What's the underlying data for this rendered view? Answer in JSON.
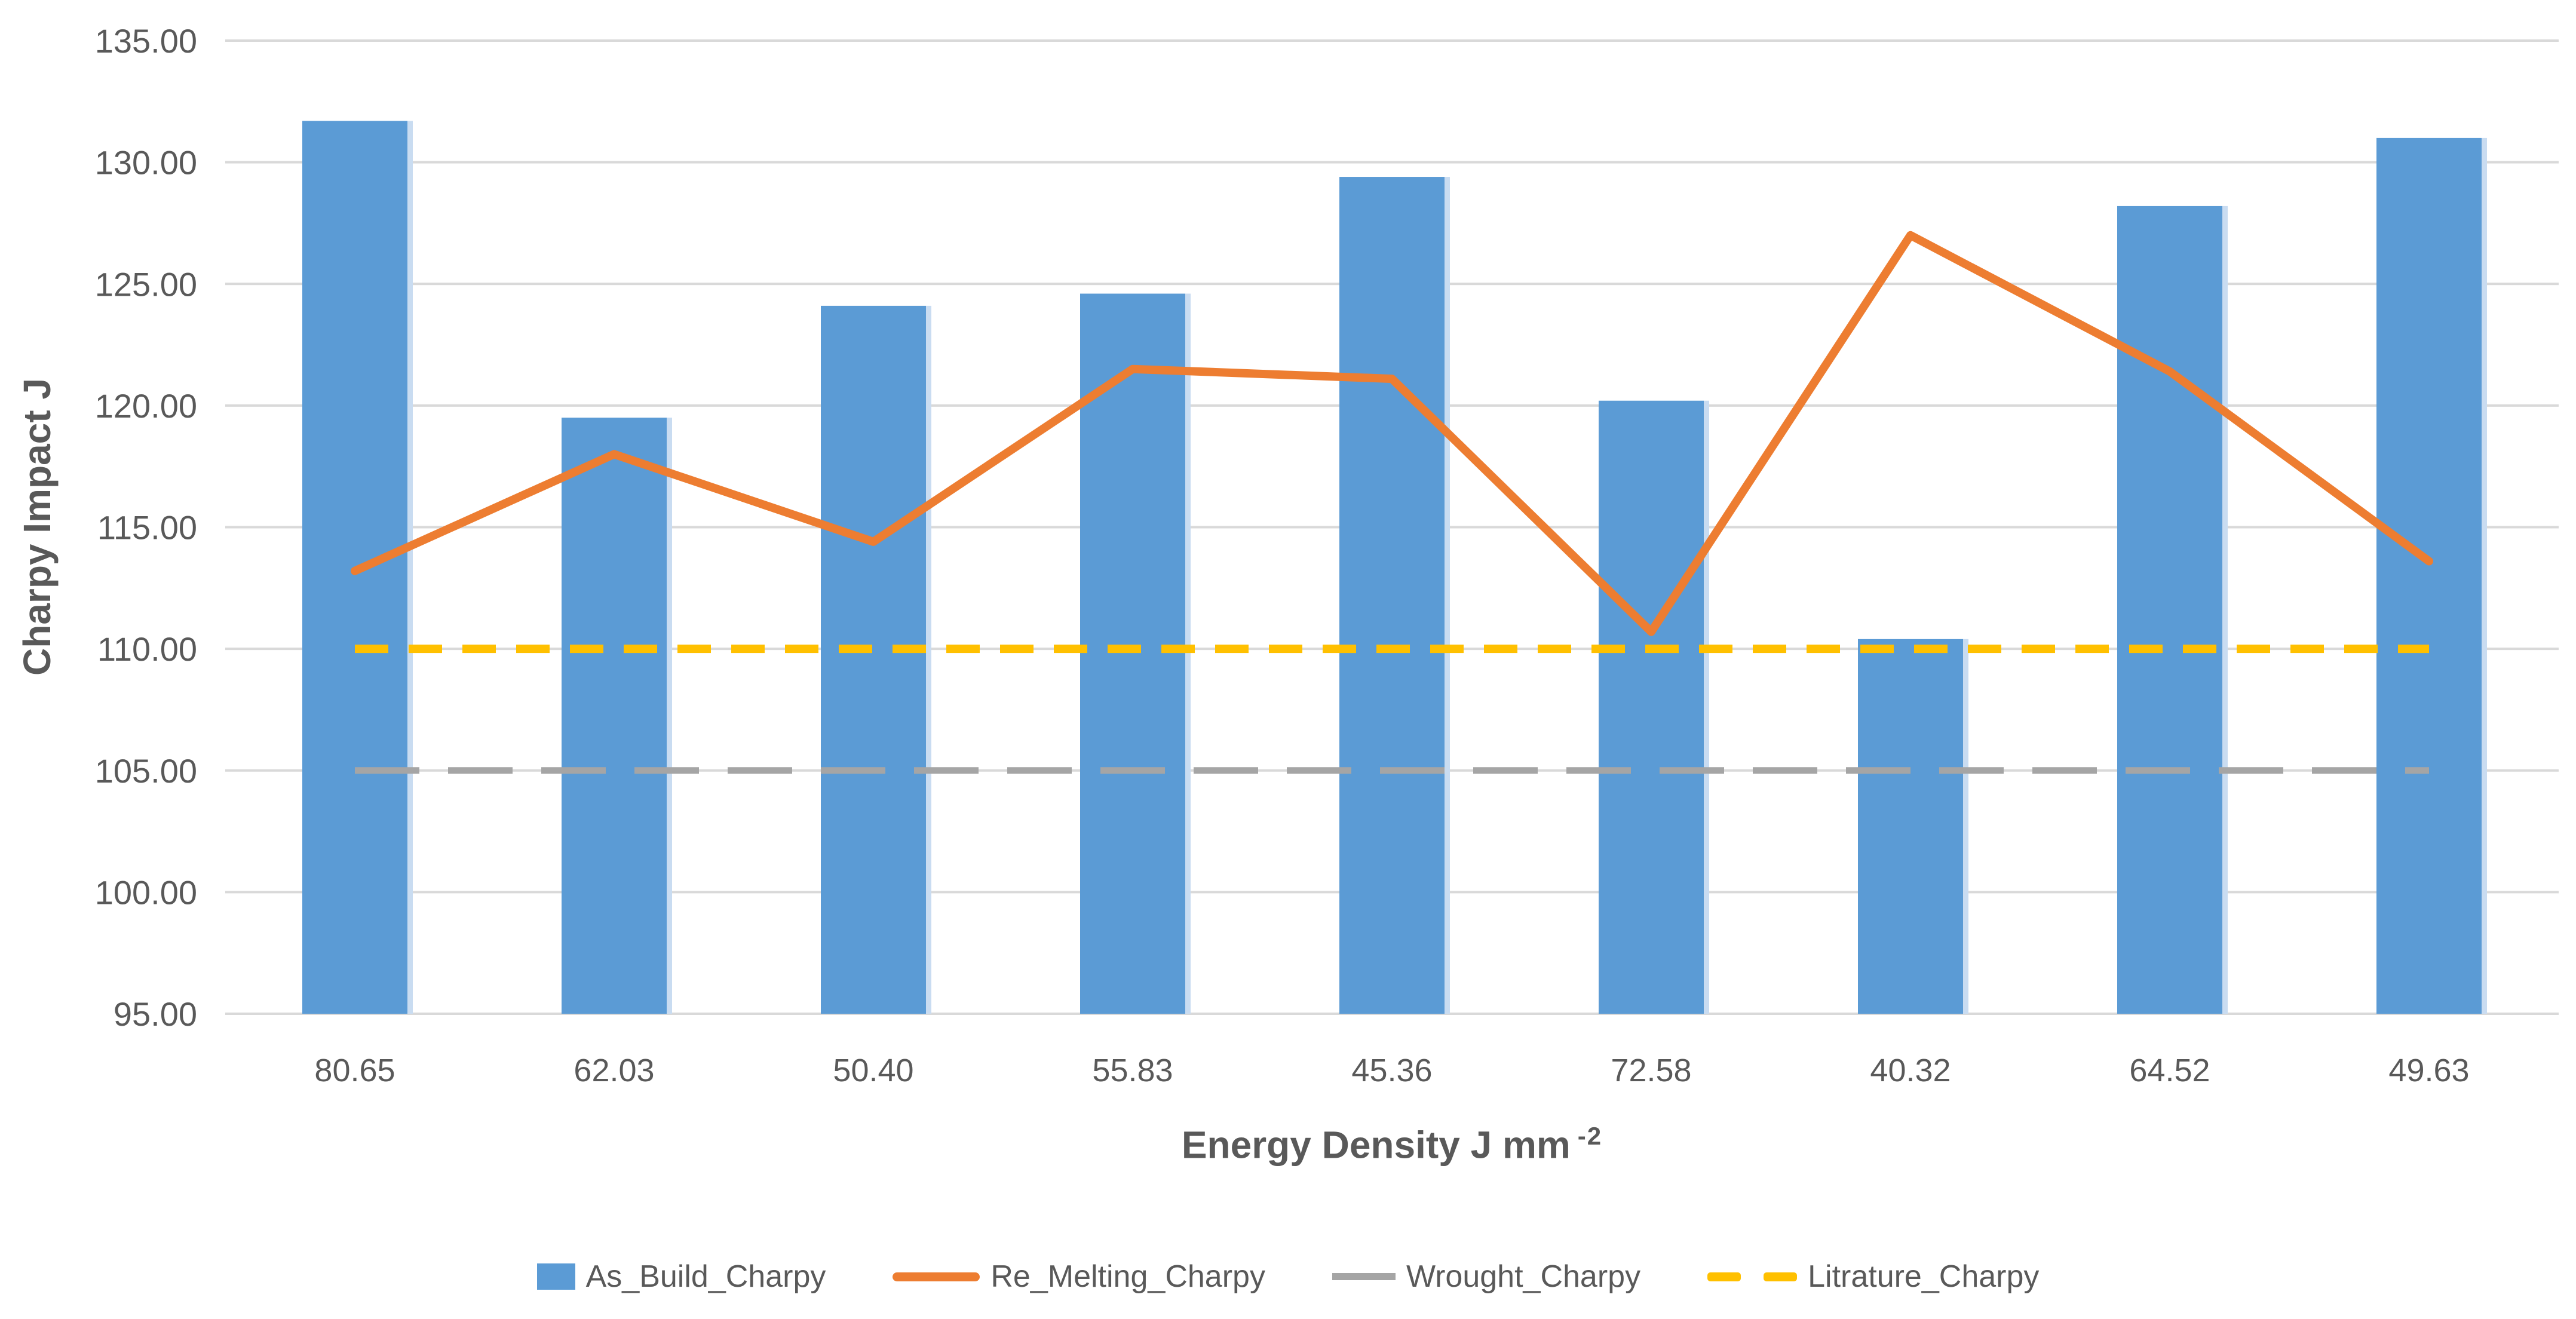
{
  "chart_data": {
    "type": "bar",
    "subtype": "combo-bar-line",
    "title": "",
    "categories": [
      "80.65",
      "62.03",
      "50.40",
      "55.83",
      "45.36",
      "72.58",
      "40.32",
      "64.52",
      "49.63"
    ],
    "series": [
      {
        "name": "As_Build_Charpy",
        "type": "bar",
        "color": "#5B9BD5",
        "values": [
          131.7,
          119.5,
          124.1,
          124.6,
          129.4,
          120.2,
          110.4,
          128.2,
          131.0
        ]
      },
      {
        "name": "Re_Melting_Charpy",
        "type": "line",
        "color": "#ED7D31",
        "values": [
          113.2,
          118.0,
          114.4,
          121.5,
          121.1,
          110.7,
          127.0,
          121.4,
          113.6
        ]
      },
      {
        "name": "Wrought_Charpy",
        "type": "dashed-line",
        "color": "#A5A5A5",
        "dash": "long",
        "values": [
          105,
          105,
          105,
          105,
          105,
          105,
          105,
          105,
          105
        ]
      },
      {
        "name": "Litrature_Charpy",
        "type": "dashed-line",
        "color": "#FFC000",
        "dash": "short",
        "values": [
          110,
          110,
          110,
          110,
          110,
          110,
          110,
          110,
          110
        ]
      }
    ],
    "xlabel": "Energy Density J mm",
    "xlabel_sup": "-2",
    "ylabel": "Charpy Impact J",
    "ylim": [
      95,
      135
    ],
    "y_tick_step": 5,
    "y_ticks": [
      {
        "value": 135,
        "label": "135.00"
      },
      {
        "value": 130,
        "label": "130.00"
      },
      {
        "value": 125,
        "label": "125.00"
      },
      {
        "value": 120,
        "label": "120.00"
      },
      {
        "value": 115,
        "label": "115.00"
      },
      {
        "value": 110,
        "label": "110.00"
      },
      {
        "value": 105,
        "label": "105.00"
      },
      {
        "value": 100,
        "label": "100.00"
      },
      {
        "value": 95,
        "label": "95.00"
      }
    ],
    "grid": "horizontal",
    "gridline_color": "#D9D9D9",
    "text_color": "#595959",
    "legend_position": "bottom"
  }
}
